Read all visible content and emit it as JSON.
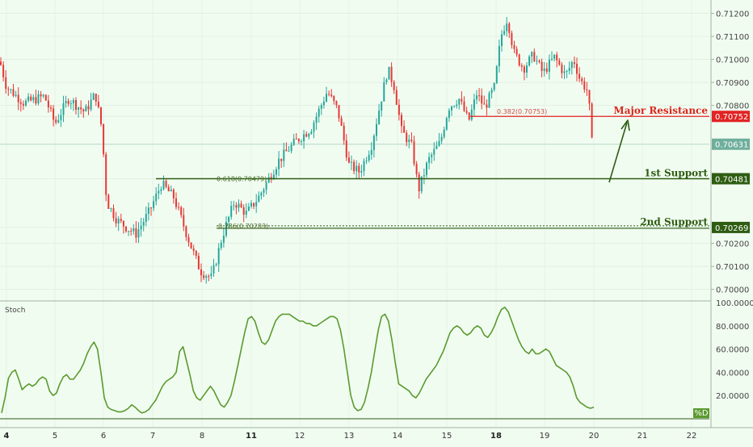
{
  "chart_data": {
    "type": "candlestick",
    "price_axis": {
      "range": [
        0.6996,
        0.7123
      ],
      "ticks": [
        "0.71200",
        "0.71100",
        "0.71000",
        "0.70900",
        "0.70800",
        "0.70752",
        "0.70631",
        "0.70481",
        "0.70269",
        "0.70200",
        "0.70100",
        "0.70000"
      ]
    },
    "x_ticks": [
      "4",
      "5",
      "6",
      "7",
      "8",
      "11",
      "12",
      "13",
      "14",
      "15",
      "18",
      "19",
      "20",
      "21",
      "22"
    ],
    "x_ticks_bold": [
      "4",
      "11",
      "18"
    ],
    "levels": {
      "major_resistance": {
        "label": "Major Resistance",
        "value": 0.70752,
        "badge": "0.70752",
        "fib": "0.382(0.70753)",
        "color": "#e02424"
      },
      "first_support": {
        "label": "1st Support",
        "value": 0.70481,
        "badge": "0.70481",
        "fib": "0.618(0.70479)",
        "color": "#2e5d12"
      },
      "second_support": {
        "label": "2nd Support",
        "value": 0.70269,
        "badge": "0.70269",
        "fib": "0.786(0.70283)",
        "color": "#2e5d12"
      }
    },
    "current_price": {
      "value": 0.70631,
      "badge": "0.70631",
      "color": "#6fae9c"
    },
    "stoch": {
      "title": "Stoch",
      "series_label": "%D",
      "axis_ticks": [
        "100.0000",
        "80.0000",
        "60.0000",
        "40.0000",
        "20.0000"
      ],
      "range": [
        0,
        100
      ],
      "values": [
        5,
        18,
        35,
        40,
        42,
        34,
        25,
        28,
        30,
        28,
        30,
        34,
        36,
        34,
        24,
        20,
        22,
        30,
        36,
        38,
        34,
        34,
        38,
        42,
        48,
        56,
        62,
        66,
        60,
        40,
        18,
        10,
        8,
        7,
        6,
        6,
        7,
        9,
        12,
        10,
        7,
        5,
        6,
        8,
        12,
        16,
        22,
        28,
        32,
        34,
        36,
        40,
        58,
        62,
        50,
        38,
        24,
        18,
        16,
        20,
        24,
        28,
        24,
        18,
        12,
        10,
        14,
        20,
        32,
        46,
        60,
        74,
        86,
        88,
        84,
        74,
        66,
        64,
        68,
        76,
        84,
        88,
        90,
        90,
        90,
        88,
        86,
        84,
        84,
        82,
        82,
        80,
        80,
        82,
        84,
        86,
        88,
        88,
        86,
        76,
        60,
        40,
        20,
        10,
        7,
        8,
        14,
        26,
        40,
        58,
        76,
        88,
        90,
        84,
        68,
        48,
        30,
        28,
        26,
        24,
        20,
        18,
        22,
        28,
        34,
        38,
        42,
        46,
        52,
        58,
        66,
        74,
        78,
        80,
        78,
        74,
        72,
        74,
        78,
        80,
        78,
        72,
        70,
        74,
        80,
        88,
        94,
        96,
        92,
        84,
        76,
        68,
        62,
        58,
        56,
        60,
        56,
        56,
        58,
        60,
        58,
        52,
        46,
        44,
        42,
        40,
        36,
        28,
        18,
        14,
        12,
        10,
        9,
        10
      ]
    }
  }
}
